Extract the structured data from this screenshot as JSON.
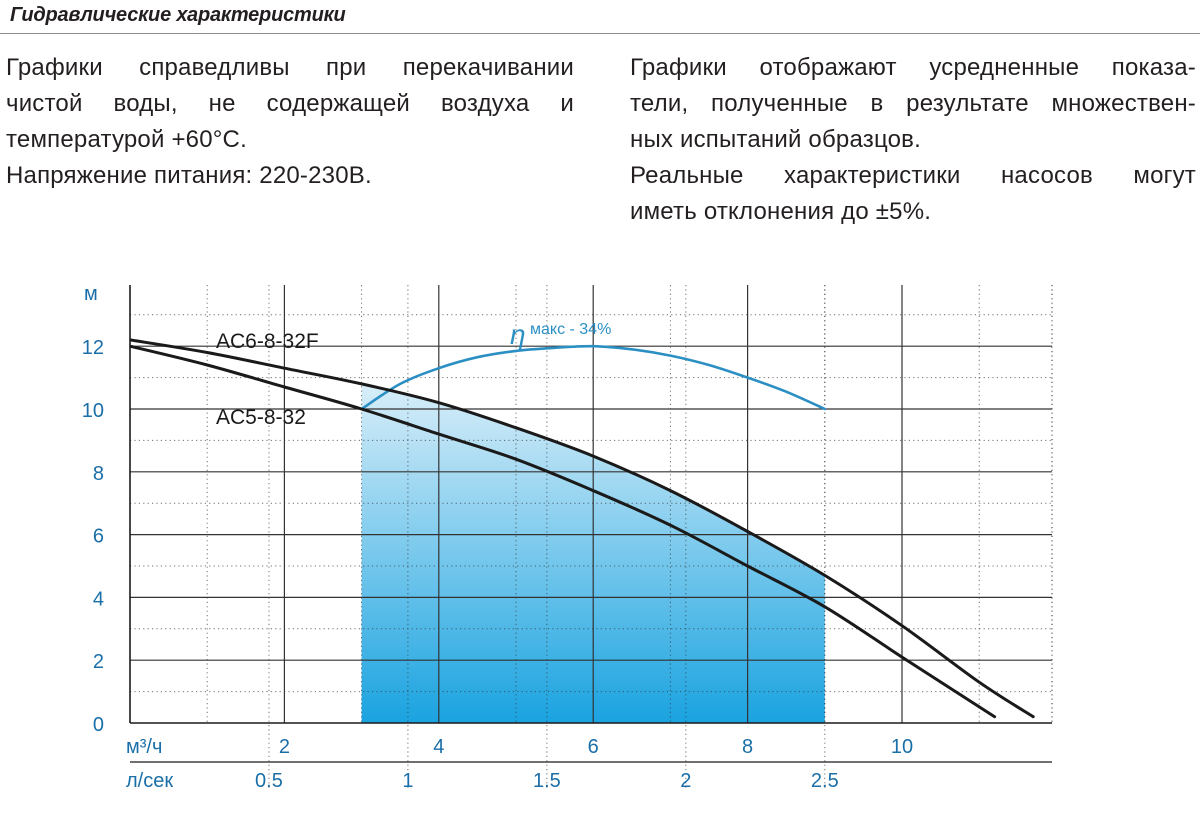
{
  "header": {
    "title": "Гидравлические характеристики"
  },
  "notes": {
    "left": {
      "p1": [
        "Графики справедливы при перекачивании",
        "чистой воды, не содержащей воздуха и",
        "температурой +60°C."
      ],
      "p2": "Напряжение питания: 220-230В."
    },
    "right": {
      "p1": [
        "Графики отображают усредненные показа-",
        "тели, полученные в результате множествен-",
        "ных испытаний образцов."
      ],
      "p2": [
        "Реальные характеристики насосов могут",
        "иметь отклонения до ±5%."
      ]
    }
  },
  "colors": {
    "axis_text": "#1b6fa8",
    "curve": "#1a1a1a",
    "efficiency": "#2b8fc4",
    "fill_top": "#d8eef9",
    "fill_bottom": "#1aa3e0",
    "grid": "#333333"
  },
  "chart_data": {
    "type": "line",
    "xlabel": "м³/ч",
    "x2label": "л/сек",
    "ylabel": "м",
    "xlim": [
      0,
      11.8
    ],
    "ylim": [
      0,
      14
    ],
    "x_ticks": [
      2,
      4,
      6,
      8,
      10
    ],
    "x2_ticks": [
      0.5,
      1,
      1.5,
      2,
      2.5
    ],
    "y_ticks": [
      0,
      2,
      4,
      6,
      8,
      10,
      12
    ],
    "grid": true,
    "series": [
      {
        "name": "AC6-8-32F",
        "x": [
          0,
          1,
          2,
          3,
          4,
          5,
          6,
          7,
          8,
          9,
          10,
          11,
          11.7
        ],
        "y": [
          12.2,
          11.8,
          11.3,
          10.8,
          10.2,
          9.4,
          8.5,
          7.4,
          6.1,
          4.7,
          3.1,
          1.3,
          0.2
        ]
      },
      {
        "name": "AC5-8-32",
        "x": [
          0,
          1,
          2,
          3,
          4,
          5,
          6,
          7,
          8,
          9,
          10,
          11.2
        ],
        "y": [
          12.0,
          11.4,
          10.7,
          10.0,
          9.2,
          8.4,
          7.4,
          6.3,
          5.0,
          3.7,
          2.1,
          0.2
        ]
      }
    ],
    "efficiency": {
      "label_symbol": "η",
      "label_text": "макс - 34%",
      "x": [
        3,
        3.5,
        4,
        4.5,
        5,
        5.5,
        6,
        6.5,
        7,
        7.5,
        8,
        8.5,
        9
      ],
      "y": [
        10.0,
        10.8,
        11.3,
        11.65,
        11.85,
        11.95,
        12.0,
        11.9,
        11.7,
        11.4,
        11.0,
        10.55,
        10.0
      ]
    },
    "working_range": {
      "x_from": 3,
      "x_to": 9
    }
  }
}
